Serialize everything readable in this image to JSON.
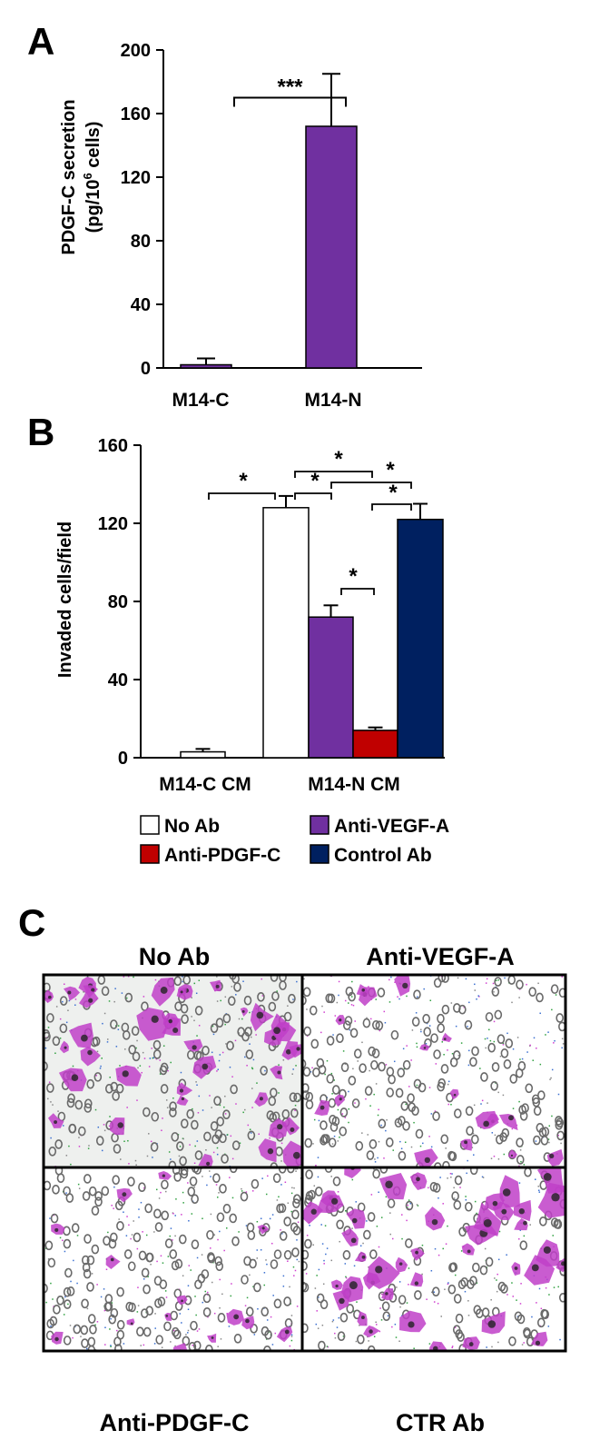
{
  "panels": {
    "a": "A",
    "b": "B",
    "c": "C"
  },
  "chart_data": [
    {
      "id": "A",
      "type": "bar",
      "categories": [
        "M14-C",
        "M14-N"
      ],
      "values": [
        2,
        152
      ],
      "errors": [
        4,
        33
      ],
      "colors": [
        "#7030a0",
        "#7030a0"
      ],
      "ylabel_line1": "PDGF-C secretion",
      "ylabel_line2_prefix": "(pg/10",
      "ylabel_line2_sup": "6",
      "ylabel_line2_suffix": " cells)",
      "ylim": [
        0,
        200
      ],
      "yticks": [
        "0",
        "40",
        "80",
        "120",
        "160",
        "200"
      ],
      "significance": [
        {
          "from": "M14-C",
          "to": "M14-N",
          "label": "***"
        }
      ]
    },
    {
      "id": "B",
      "type": "bar",
      "ylabel": "Invaded cells/field",
      "ylim": [
        0,
        160
      ],
      "yticks": [
        "0",
        "40",
        "80",
        "120",
        "160"
      ],
      "groups": [
        "M14-C CM",
        "M14-N CM"
      ],
      "series": [
        {
          "name": "No Ab",
          "color": "#ffffff"
        },
        {
          "name": "Anti-VEGF-A",
          "color": "#7030a0"
        },
        {
          "name": "Anti-PDGF-C",
          "color": "#c00000"
        },
        {
          "name": "Control Ab",
          "color": "#002060"
        }
      ],
      "bars": [
        {
          "group": "M14-C CM",
          "series": "No Ab",
          "value": 3,
          "error": 1.5
        },
        {
          "group": "M14-N CM",
          "series": "No Ab",
          "value": 128,
          "error": 6
        },
        {
          "group": "M14-N CM",
          "series": "Anti-VEGF-A",
          "value": 72,
          "error": 6
        },
        {
          "group": "M14-N CM",
          "series": "Anti-PDGF-C",
          "value": 14,
          "error": 1.5
        },
        {
          "group": "M14-N CM",
          "series": "Control Ab",
          "value": 122,
          "error": 8
        }
      ],
      "significance": [
        {
          "from": "M14-C CM No Ab",
          "to": "M14-N CM No Ab",
          "label": "*"
        },
        {
          "from": "M14-N CM No Ab",
          "to": "M14-N CM Anti-VEGF-A",
          "label": "*"
        },
        {
          "from": "M14-N CM No Ab",
          "to": "M14-N CM Anti-PDGF-C",
          "label": "*"
        },
        {
          "from": "M14-N CM Anti-VEGF-A",
          "to": "M14-N CM Control Ab",
          "label": "*"
        },
        {
          "from": "M14-N CM Anti-PDGF-C",
          "to": "M14-N CM Control Ab",
          "label": "*"
        },
        {
          "from": "M14-N CM Anti-VEGF-A",
          "to": "M14-N CM Anti-PDGF-C",
          "label": "*"
        }
      ],
      "legend": [
        "No Ab",
        "Anti-VEGF-A",
        "Anti-PDGF-C",
        "Control Ab"
      ]
    }
  ],
  "panel_c": {
    "top_left": "No Ab",
    "top_right": "Anti-VEGF-A",
    "bottom_left": "Anti-PDGF-C",
    "bottom_right": "CTR Ab",
    "stain_color": "#c040c8",
    "pore_color": "#6a6a6a"
  }
}
